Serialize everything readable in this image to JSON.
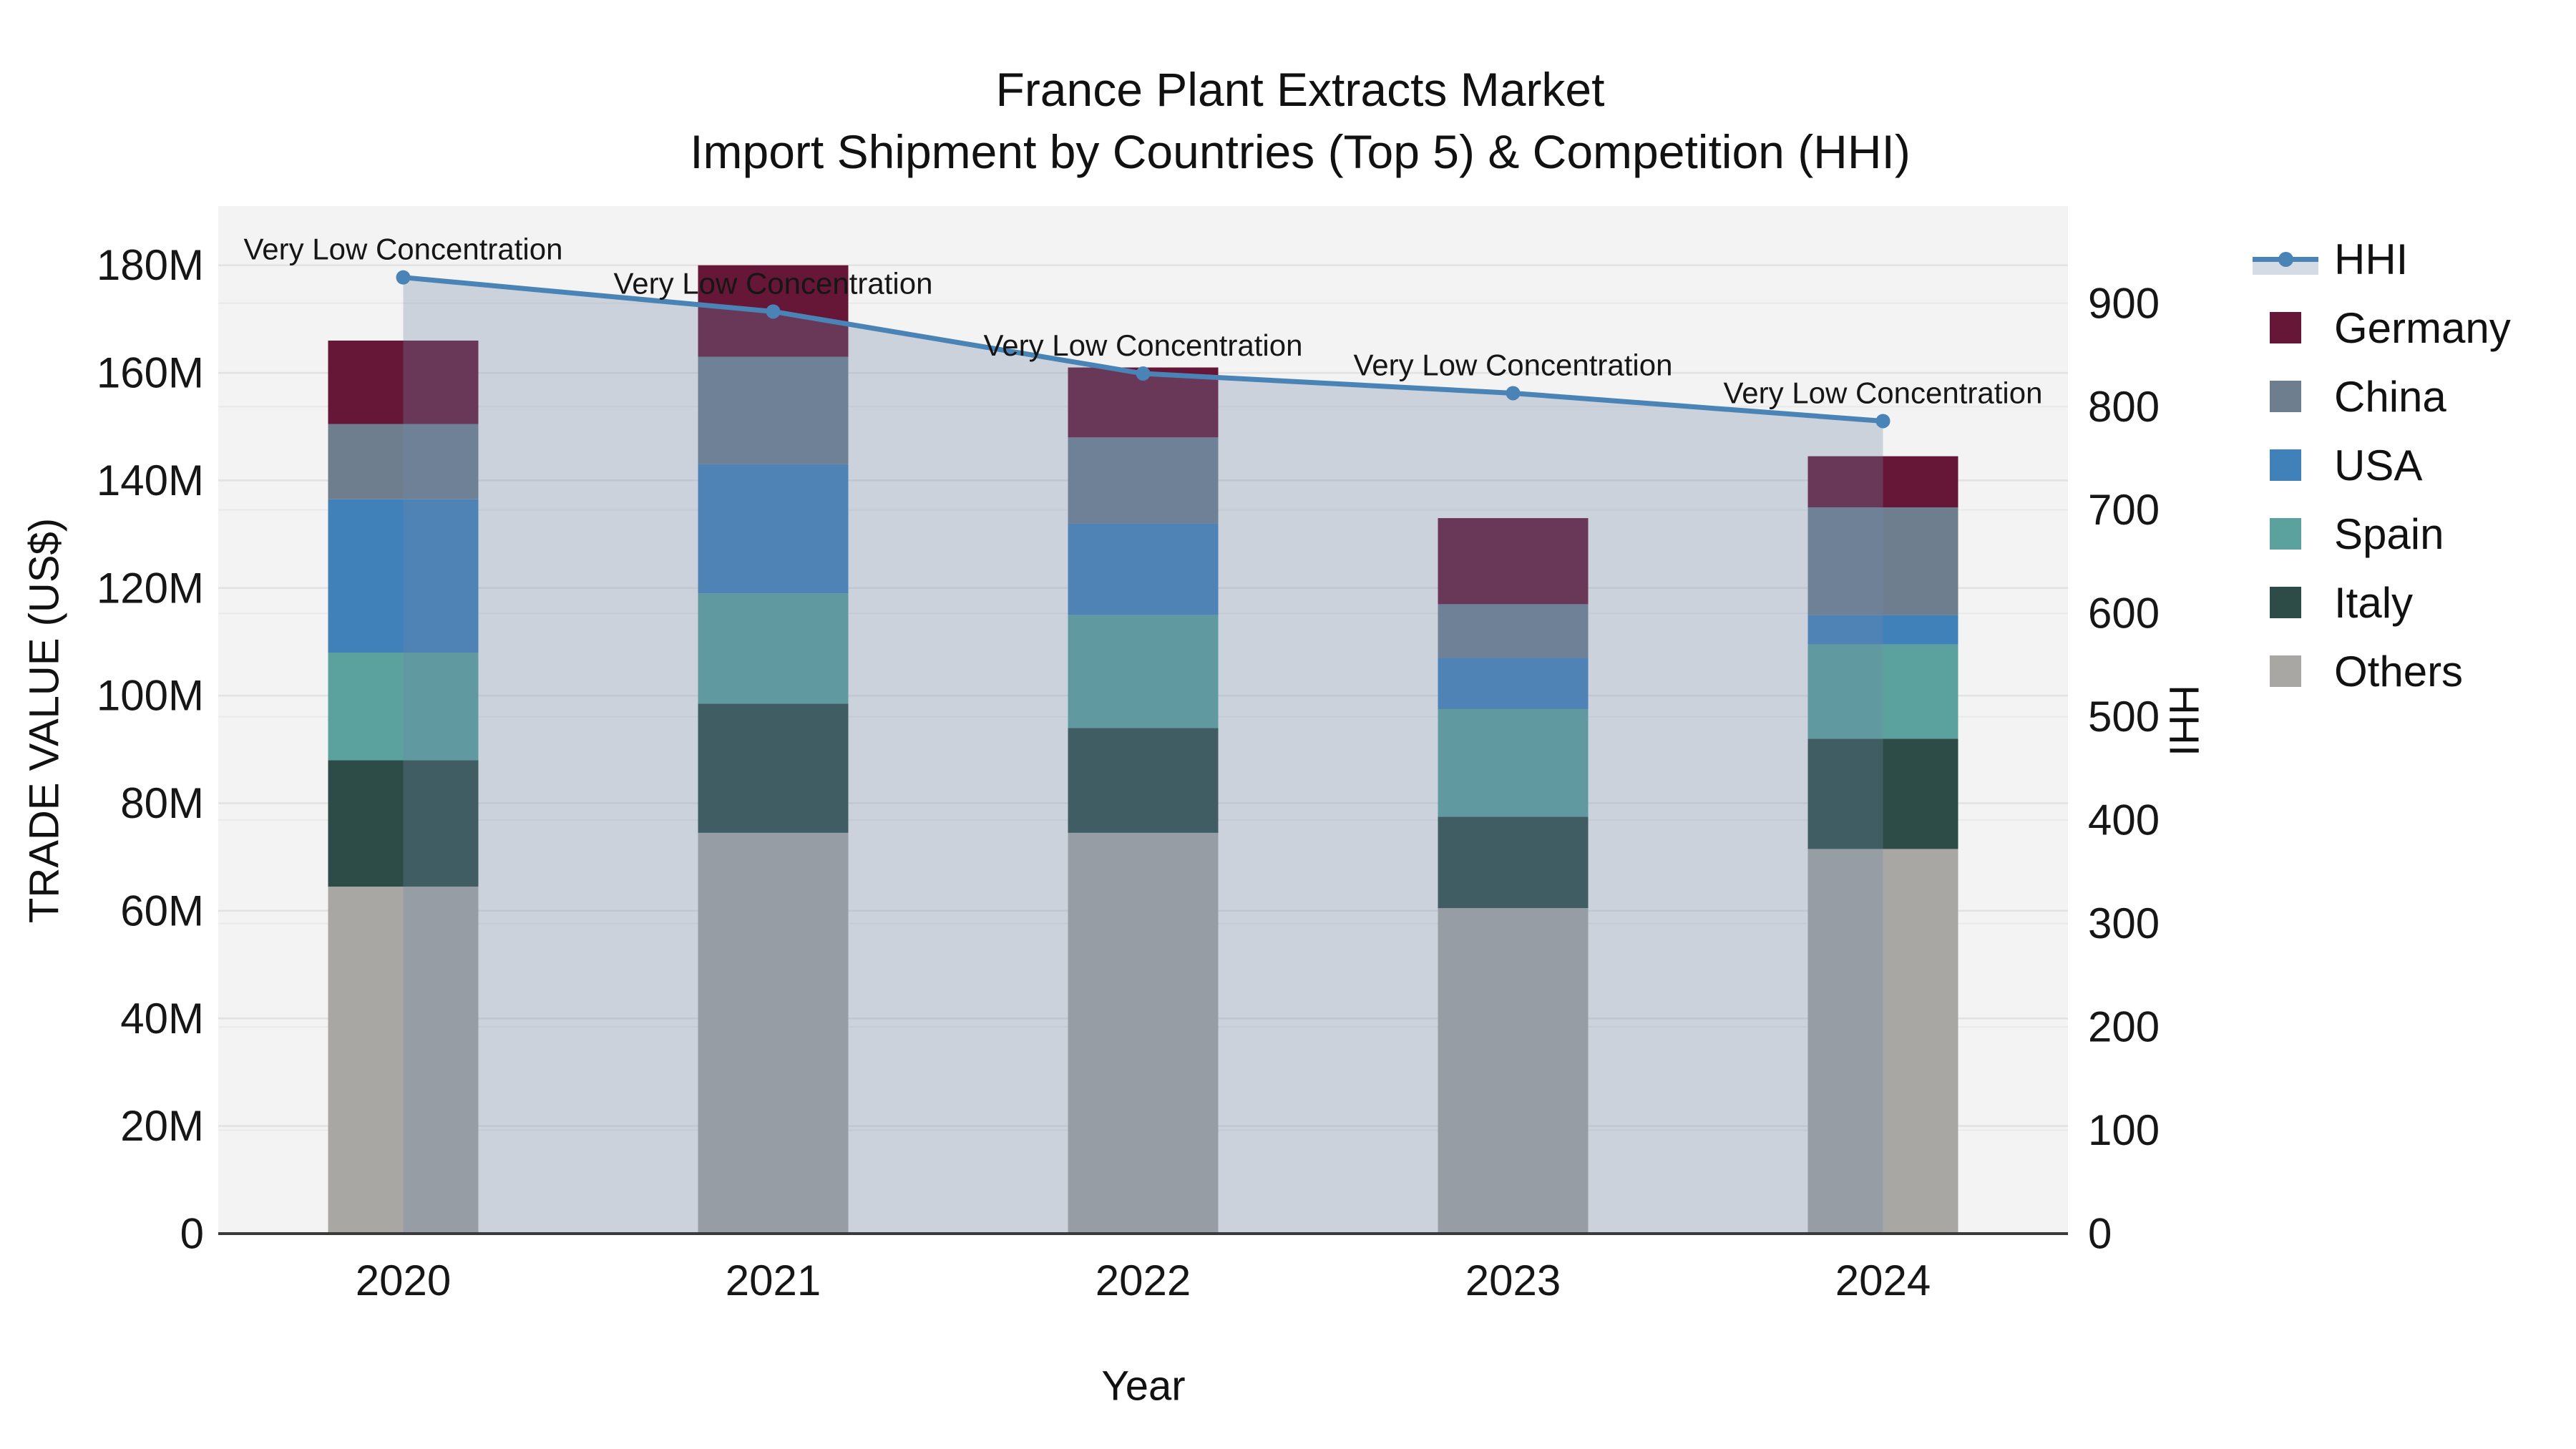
{
  "title": {
    "line1": "France Plant Extracts Market",
    "line2": "Import Shipment by Countries (Top 5) & Competition (HHI)"
  },
  "colors": {
    "plot_bg": "#f3f3f3",
    "grid_left": "#e2e2e2",
    "grid_right": "#e9e9e9",
    "axis_line": "#3a3a3a",
    "text": "#161616",
    "hhi_line": "#4a83b5",
    "hhi_area": "rgba(112,135,169,0.30)",
    "germany": "#661636",
    "china": "#6f7e8e",
    "usa": "#4181ba",
    "spain": "#5ba19e",
    "italy": "#2d4b47",
    "others": "#a8a7a4"
  },
  "chart_data": {
    "type": "stacked-bar+line",
    "title": "France Plant Extracts Market — Import Shipment by Countries (Top 5) & Competition (HHI)",
    "categories": [
      "2020",
      "2021",
      "2022",
      "2023",
      "2024"
    ],
    "value_unit": "million US$",
    "series": [
      {
        "name": "Others",
        "type": "bar",
        "color_key": "others",
        "values": [
          64.5,
          74.5,
          74.5,
          60.5,
          71.5
        ]
      },
      {
        "name": "Italy",
        "type": "bar",
        "color_key": "italy",
        "values": [
          23.5,
          24.0,
          19.5,
          17.0,
          20.5
        ]
      },
      {
        "name": "Spain",
        "type": "bar",
        "color_key": "spain",
        "values": [
          20.0,
          20.5,
          21.0,
          20.0,
          17.5
        ]
      },
      {
        "name": "USA",
        "type": "bar",
        "color_key": "usa",
        "values": [
          28.5,
          24.0,
          17.0,
          9.5,
          5.5
        ]
      },
      {
        "name": "China",
        "type": "bar",
        "color_key": "china",
        "values": [
          14.0,
          20.0,
          16.0,
          10.0,
          20.0
        ]
      },
      {
        "name": "Germany",
        "type": "bar",
        "color_key": "germany",
        "values": [
          15.5,
          17.0,
          13.0,
          16.0,
          9.5
        ]
      }
    ],
    "line_series": {
      "name": "HHI",
      "axis": "right",
      "color_key": "hhi_line",
      "area_color_key": "hhi_area",
      "values": [
        925,
        892,
        832,
        813,
        786
      ]
    },
    "annotations": [
      {
        "text": "Very Low Concentration",
        "category": "2020"
      },
      {
        "text": "Very Low Concentration",
        "category": "2021"
      },
      {
        "text": "Very Low Concentration",
        "category": "2022"
      },
      {
        "text": "Very Low Concentration",
        "category": "2023"
      },
      {
        "text": "Very Low Concentration",
        "category": "2024"
      }
    ],
    "x_axis": {
      "title": "Year"
    },
    "y_axis_left": {
      "title": "TRADE VALUE (US$)",
      "tick_labels": [
        "0",
        "20M",
        "40M",
        "60M",
        "80M",
        "100M",
        "120M",
        "140M",
        "160M",
        "180M"
      ],
      "tick_values": [
        0,
        20,
        40,
        60,
        80,
        100,
        120,
        140,
        160,
        180
      ],
      "max": 191
    },
    "y_axis_right": {
      "title": "HHI",
      "tick_labels": [
        "0",
        "100",
        "200",
        "300",
        "400",
        "500",
        "600",
        "700",
        "800",
        "900"
      ],
      "tick_values": [
        0,
        100,
        200,
        300,
        400,
        500,
        600,
        700,
        800,
        900
      ],
      "max": 994
    },
    "legend": [
      "HHI",
      "Germany",
      "China",
      "USA",
      "Spain",
      "Italy",
      "Others"
    ],
    "legend_position": "right"
  }
}
